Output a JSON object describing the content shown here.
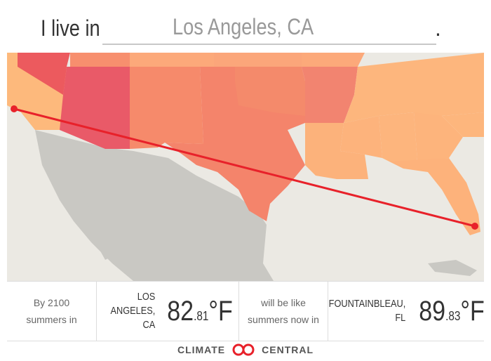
{
  "header": {
    "lead": "I live in",
    "city_input": "Los Angeles, CA",
    "end": "."
  },
  "footer": {
    "intro": "By 2100 summers in",
    "from": {
      "city": "LOS ANGELES,",
      "state": "CA",
      "temp_whole": "82",
      "temp_decimal": ".81",
      "unit": "°F"
    },
    "middle": "will be like summers now in",
    "to": {
      "city": "FOUNTAINBLEAU,",
      "state": "FL",
      "temp_whole": "89",
      "temp_decimal": ".83",
      "unit": "°F"
    }
  },
  "brand": {
    "left": "CLIMATE",
    "right": "CENTRAL"
  }
}
